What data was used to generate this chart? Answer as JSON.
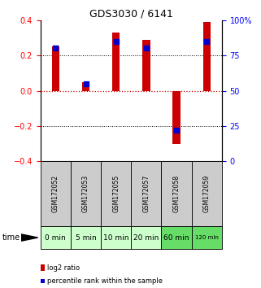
{
  "title": "GDS3030 / 6141",
  "samples": [
    "GSM172052",
    "GSM172053",
    "GSM172055",
    "GSM172057",
    "GSM172058",
    "GSM172059"
  ],
  "time_labels": [
    "0 min",
    "5 min",
    "10 min",
    "20 min",
    "60 min",
    "120 min"
  ],
  "log2_ratio": [
    0.25,
    0.05,
    0.33,
    0.29,
    -0.3,
    0.39
  ],
  "percentile_rank": [
    80,
    55,
    85,
    80,
    22,
    85
  ],
  "ylim_left": [
    -0.4,
    0.4
  ],
  "ylim_right": [
    0,
    100
  ],
  "yticks_left": [
    -0.4,
    -0.2,
    0.0,
    0.2,
    0.4
  ],
  "yticks_right": [
    0,
    25,
    50,
    75,
    100
  ],
  "bar_color": "#cc0000",
  "dot_color": "#0000cc",
  "hline_zero_color": "#cc0000",
  "hline_grid_color": "#000000",
  "bg_color": "#ffffff",
  "sample_bg_color": "#cccccc",
  "time_bg_colors": [
    "#ccffcc",
    "#ccffcc",
    "#ccffcc",
    "#ccffcc",
    "#66dd66",
    "#66dd66"
  ],
  "bar_width": 0.25,
  "legend_red_label": "log2 ratio",
  "legend_blue_label": "percentile rank within the sample",
  "time_label": "time"
}
